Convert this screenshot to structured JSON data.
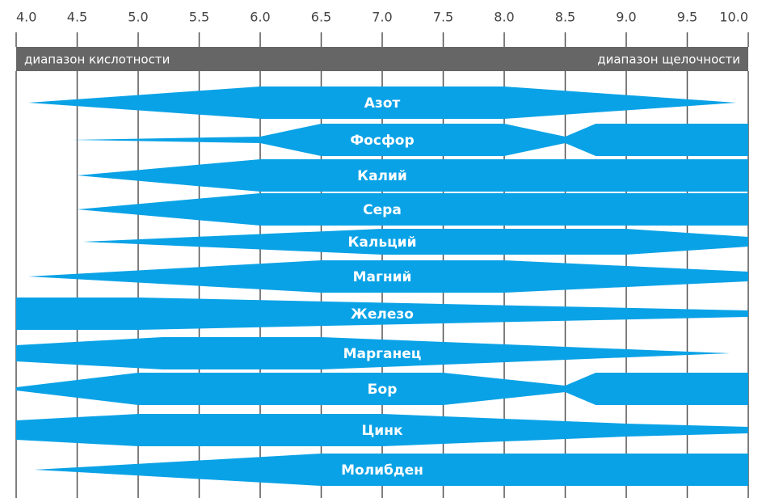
{
  "chart_data": {
    "type": "availability",
    "xlim": [
      4,
      10
    ],
    "xticks": [
      {
        "value": 4,
        "label": "4.0"
      },
      4.5,
      {
        "value": 5,
        "label": "5.0"
      },
      5.5,
      {
        "value": 6,
        "label": "6.0"
      },
      6.5,
      {
        "value": 7,
        "label": "7.0"
      },
      7.5,
      {
        "value": 8,
        "label": "8.0"
      },
      8.5,
      {
        "value": 9,
        "label": "9.0"
      },
      9.5,
      {
        "value": 10,
        "label": "10.0"
      }
    ],
    "annotations": [
      "диапазон кислотности",
      "диапазон щелочности"
    ],
    "color": "#0aa2e6",
    "grid": true,
    "series": [
      {
        "name": "Азот",
        "x": [
          4.1,
          6,
          8,
          9.9
        ],
        "values": [
          0,
          1,
          1,
          0
        ]
      },
      {
        "name": "Фосфор",
        "x": [
          4.45,
          6,
          6.5,
          8,
          8.5,
          8.75,
          10
        ],
        "values": [
          0,
          0.2,
          1,
          1,
          0.2,
          1,
          1
        ]
      },
      {
        "name": "Калий",
        "x": [
          4.5,
          6,
          10
        ],
        "values": [
          0,
          1,
          1
        ]
      },
      {
        "name": "Сера",
        "x": [
          4.5,
          6,
          10
        ],
        "values": [
          0,
          1,
          1
        ]
      },
      {
        "name": "Кальций",
        "x": [
          4.55,
          7,
          9,
          10
        ],
        "values": [
          0,
          0.8,
          0.8,
          0.3
        ]
      },
      {
        "name": "Магний",
        "x": [
          4.1,
          6.5,
          8,
          10
        ],
        "values": [
          0,
          1,
          1,
          0.3
        ]
      },
      {
        "name": "Железо",
        "x": [
          4,
          5,
          10
        ],
        "values": [
          1,
          1,
          0.2
        ]
      },
      {
        "name": "Марганец",
        "x": [
          4,
          5.2,
          6.5,
          9.85
        ],
        "values": [
          0.5,
          1,
          1,
          0
        ]
      },
      {
        "name": "Бор",
        "x": [
          4,
          5,
          7.5,
          8.5,
          8.75,
          10
        ],
        "values": [
          0.1,
          1,
          1,
          0.2,
          1,
          1
        ]
      },
      {
        "name": "Цинк",
        "x": [
          4,
          5,
          7,
          9,
          10
        ],
        "values": [
          0.6,
          1,
          1,
          0.4,
          0.2
        ]
      },
      {
        "name": "Молибден",
        "x": [
          4.15,
          6.5,
          10
        ],
        "values": [
          0,
          1,
          1
        ]
      }
    ]
  }
}
